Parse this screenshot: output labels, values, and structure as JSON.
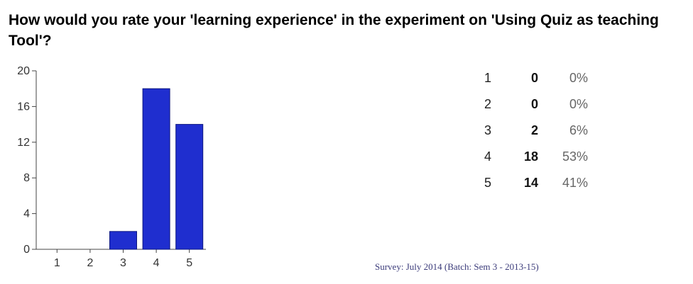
{
  "question": {
    "text": "How would you rate your 'learning experience' in the experiment on 'Using Quiz as teaching Tool'?"
  },
  "chart_data": {
    "type": "bar",
    "categories": [
      "1",
      "2",
      "3",
      "4",
      "5"
    ],
    "values": [
      0,
      0,
      2,
      18,
      14
    ],
    "ylim": [
      0,
      20
    ],
    "yticks": [
      "0",
      "4",
      "8",
      "12",
      "16",
      "20"
    ],
    "bar_color": "#1f2ecf",
    "grid": false
  },
  "summary": {
    "rows": [
      {
        "option": "1",
        "count": "0",
        "percent": "0%"
      },
      {
        "option": "2",
        "count": "0",
        "percent": "0%"
      },
      {
        "option": "3",
        "count": "2",
        "percent": "6%"
      },
      {
        "option": "4",
        "count": "18",
        "percent": "53%"
      },
      {
        "option": "5",
        "count": "14",
        "percent": "41%"
      }
    ]
  },
  "footer": {
    "survey_note": "Survey: July 2014 (Batch: Sem 3 - 2013-15)"
  }
}
